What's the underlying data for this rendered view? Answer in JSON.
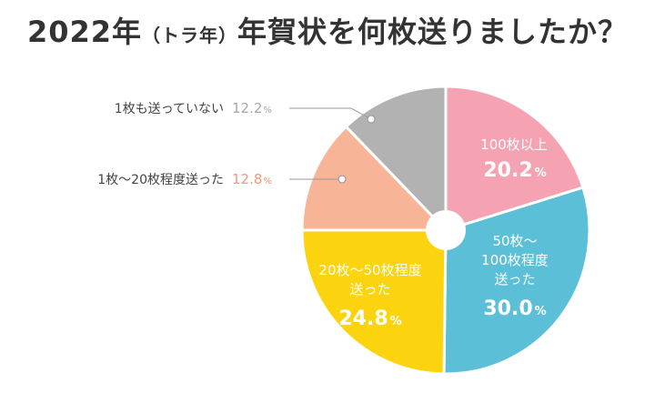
{
  "title": {
    "main_before": "2022年",
    "paren": "（トラ年）",
    "main_after": "年賀状を何枚送りましたか？"
  },
  "chart_data": {
    "type": "pie",
    "title": "2022年（トラ年）年賀状を何枚送りましたか？",
    "slices": [
      {
        "label_lines": [
          "100枚以上"
        ],
        "label": "100枚以上",
        "value": 20.2,
        "value_text": "20.2",
        "unit": "%",
        "color": "#f5a3b3",
        "label_position": "inside"
      },
      {
        "label_lines": [
          "50枚〜",
          "100枚程度",
          "送った"
        ],
        "label": "50枚〜100枚程度送った",
        "value": 30.0,
        "value_text": "30.0",
        "unit": "%",
        "color": "#5bbfd8",
        "label_position": "inside"
      },
      {
        "label_lines": [
          "20枚〜50枚程度",
          "送った"
        ],
        "label": "20枚〜50枚程度送った",
        "value": 24.8,
        "value_text": "24.8",
        "unit": "%",
        "color": "#fbd30f",
        "label_position": "inside"
      },
      {
        "label_lines": [
          "1枚〜20枚程度送った"
        ],
        "label": "1枚〜20枚程度送った",
        "value": 12.8,
        "value_text": "12.8",
        "unit": "%",
        "color": "#f8b496",
        "label_position": "outside",
        "text_color": "#f29a74"
      },
      {
        "label_lines": [
          "1枚も送っていない"
        ],
        "label": "1枚も送っていない",
        "value": 12.2,
        "value_text": "12.2",
        "unit": "%",
        "color": "#b2b2b2",
        "label_position": "outside",
        "text_color": "#a8a8a8"
      }
    ],
    "start_angle_deg": 0,
    "direction": "clockwise",
    "donut_hole": true
  }
}
